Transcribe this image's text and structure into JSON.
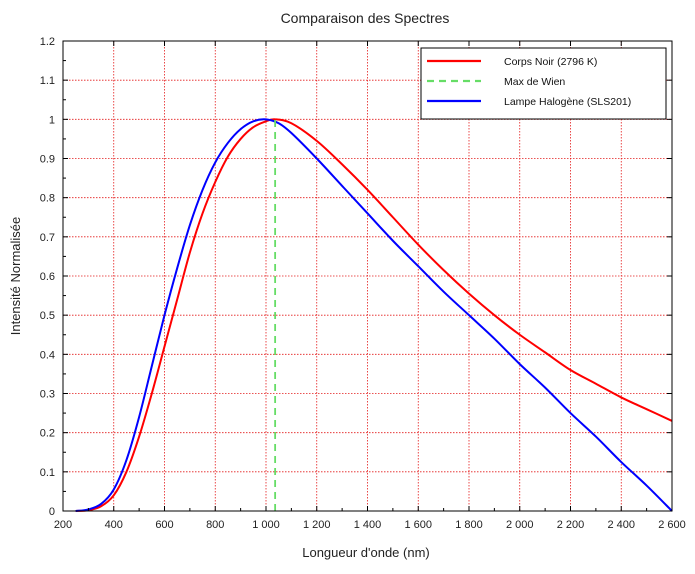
{
  "chart_data": {
    "type": "line",
    "title": "Comparaison des Spectres",
    "xlabel": "Longueur d'onde (nm)",
    "ylabel": "Intensité Normalisée",
    "xlim": [
      200,
      2600
    ],
    "ylim": [
      0,
      1.2
    ],
    "grid": true,
    "legend_position": "top-right",
    "x_ticks": [
      200,
      400,
      600,
      800,
      1000,
      1200,
      1400,
      1600,
      1800,
      2000,
      2200,
      2400,
      2600
    ],
    "x_tick_labels": [
      "200",
      "400",
      "600",
      "800",
      "1 000",
      "1 200",
      "1 400",
      "1 600",
      "1 800",
      "2 000",
      "2 200",
      "2 400",
      "2 600"
    ],
    "y_ticks": [
      0,
      0.1,
      0.2,
      0.3,
      0.4,
      0.5,
      0.6,
      0.7,
      0.8,
      0.9,
      1,
      1.1,
      1.2
    ],
    "y_tick_labels": [
      "0",
      "0.1",
      "0.2",
      "0.3",
      "0.4",
      "0.5",
      "0.6",
      "0.7",
      "0.8",
      "0.9",
      "1",
      "1.1",
      "1.2"
    ],
    "series": [
      {
        "name": "Corps Noir (2796 K)",
        "color": "#ff0000",
        "style": "solid",
        "x": [
          250,
          300,
          350,
          400,
          450,
          500,
          550,
          600,
          650,
          700,
          750,
          800,
          850,
          900,
          950,
          1000,
          1036,
          1100,
          1200,
          1300,
          1400,
          1500,
          1600,
          1700,
          1800,
          1900,
          2000,
          2100,
          2200,
          2300,
          2400,
          2500,
          2600
        ],
        "y": [
          0.0,
          0.002,
          0.012,
          0.04,
          0.1,
          0.19,
          0.3,
          0.42,
          0.54,
          0.66,
          0.76,
          0.84,
          0.905,
          0.95,
          0.98,
          0.995,
          1.0,
          0.99,
          0.945,
          0.885,
          0.82,
          0.75,
          0.68,
          0.615,
          0.555,
          0.5,
          0.45,
          0.405,
          0.36,
          0.325,
          0.29,
          0.26,
          0.23
        ]
      },
      {
        "name": "Max de Wien",
        "color": "#66dd66",
        "style": "dashed",
        "x": [
          1036,
          1036
        ],
        "y": [
          0,
          1.0
        ]
      },
      {
        "name": "Lampe Halogène (SLS201)",
        "color": "#0000ff",
        "style": "solid",
        "x": [
          250,
          300,
          350,
          400,
          450,
          500,
          550,
          600,
          650,
          700,
          750,
          800,
          850,
          900,
          950,
          1000,
          1050,
          1100,
          1200,
          1300,
          1400,
          1500,
          1600,
          1700,
          1800,
          1900,
          2000,
          2100,
          2200,
          2300,
          2400,
          2500,
          2600
        ],
        "y": [
          0.0,
          0.004,
          0.018,
          0.055,
          0.13,
          0.24,
          0.37,
          0.5,
          0.62,
          0.73,
          0.82,
          0.89,
          0.94,
          0.975,
          0.995,
          1.0,
          0.99,
          0.965,
          0.9,
          0.83,
          0.76,
          0.69,
          0.625,
          0.56,
          0.5,
          0.44,
          0.375,
          0.315,
          0.25,
          0.19,
          0.125,
          0.065,
          0.0
        ]
      }
    ]
  }
}
